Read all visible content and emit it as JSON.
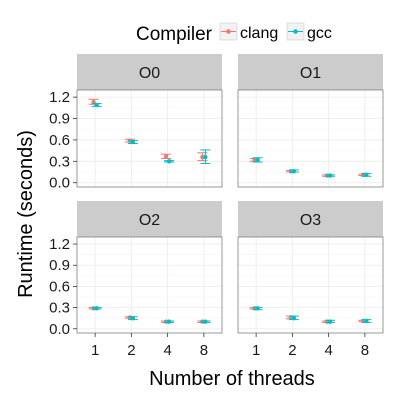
{
  "chart_data": {
    "type": "scatter",
    "xlabel": "Number of threads",
    "ylabel": "Runtime (seconds)",
    "categories": [
      "1",
      "2",
      "4",
      "8"
    ],
    "yticks": [
      0.0,
      0.3,
      0.6,
      0.9,
      1.2
    ],
    "ytick_labels": [
      "0.0",
      "0.3",
      "0.6",
      "0.9",
      "1.2"
    ],
    "ylim": [
      -0.06,
      1.3
    ],
    "grid": true,
    "legend": {
      "title": "Compiler",
      "position": "top",
      "items": [
        "clang",
        "gcc"
      ]
    },
    "colors": {
      "clang": "#F8766D",
      "gcc": "#00BFC4"
    },
    "panels": [
      {
        "title": "O0",
        "series": [
          {
            "name": "clang",
            "mean": [
              1.13,
              0.59,
              0.37,
              0.36
            ],
            "low": [
              1.1,
              0.57,
              0.34,
              0.31
            ],
            "high": [
              1.17,
              0.61,
              0.4,
              0.42
            ]
          },
          {
            "name": "gcc",
            "mean": [
              1.09,
              0.57,
              0.3,
              0.36
            ],
            "low": [
              1.07,
              0.55,
              0.29,
              0.27
            ],
            "high": [
              1.11,
              0.59,
              0.31,
              0.46
            ]
          }
        ]
      },
      {
        "title": "O1",
        "series": [
          {
            "name": "clang",
            "mean": [
              0.32,
              0.16,
              0.1,
              0.11
            ],
            "low": [
              0.3,
              0.15,
              0.09,
              0.1
            ],
            "high": [
              0.34,
              0.17,
              0.11,
              0.12
            ]
          },
          {
            "name": "gcc",
            "mean": [
              0.32,
              0.16,
              0.1,
              0.11
            ],
            "low": [
              0.29,
              0.15,
              0.09,
              0.09
            ],
            "high": [
              0.35,
              0.18,
              0.11,
              0.13
            ]
          }
        ]
      },
      {
        "title": "O2",
        "series": [
          {
            "name": "clang",
            "mean": [
              0.29,
              0.16,
              0.1,
              0.1
            ],
            "low": [
              0.28,
              0.15,
              0.09,
              0.09
            ],
            "high": [
              0.3,
              0.17,
              0.11,
              0.11
            ]
          },
          {
            "name": "gcc",
            "mean": [
              0.29,
              0.15,
              0.1,
              0.1
            ],
            "low": [
              0.28,
              0.13,
              0.09,
              0.09
            ],
            "high": [
              0.3,
              0.17,
              0.11,
              0.11
            ]
          }
        ]
      },
      {
        "title": "O3",
        "series": [
          {
            "name": "clang",
            "mean": [
              0.29,
              0.16,
              0.1,
              0.11
            ],
            "low": [
              0.28,
              0.14,
              0.09,
              0.1
            ],
            "high": [
              0.3,
              0.18,
              0.11,
              0.12
            ]
          },
          {
            "name": "gcc",
            "mean": [
              0.29,
              0.15,
              0.1,
              0.11
            ],
            "low": [
              0.27,
              0.13,
              0.09,
              0.09
            ],
            "high": [
              0.3,
              0.18,
              0.12,
              0.13
            ]
          }
        ]
      }
    ]
  }
}
